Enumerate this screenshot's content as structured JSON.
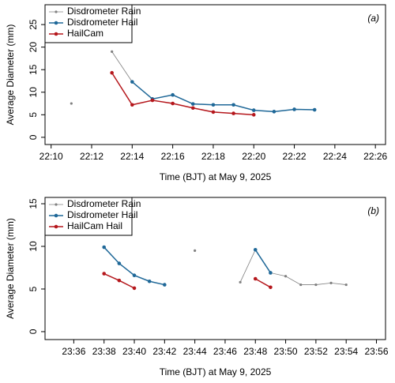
{
  "chart_data": [
    {
      "type": "line",
      "panel": "(a)",
      "xlabel": "Time (BJT) at May 9, 2025",
      "ylabel": "Average Diameter (mm)",
      "xlim": [
        1329.7,
        1346.5
      ],
      "ylim": [
        -1.6,
        29.4
      ],
      "xticks": [
        {
          "value": 1330,
          "label": "22:10"
        },
        {
          "value": 1332,
          "label": "22:12"
        },
        {
          "value": 1334,
          "label": "22:14"
        },
        {
          "value": 1336,
          "label": "22:16"
        },
        {
          "value": 1338,
          "label": "22:18"
        },
        {
          "value": 1340,
          "label": "22:20"
        },
        {
          "value": 1342,
          "label": "22:22"
        },
        {
          "value": 1344,
          "label": "22:24"
        },
        {
          "value": 1346,
          "label": "22:26"
        }
      ],
      "yticks": [
        0,
        5,
        10,
        15,
        20,
        25
      ],
      "legend": "upper left",
      "series": [
        {
          "name": "Disdrometer Rain",
          "color": "#808080",
          "x": [
            1331,
            1332,
            1333,
            1334
          ],
          "values": [
            7.5,
            null,
            19.0,
            12.3
          ]
        },
        {
          "name": "Disdrometer Hail",
          "color": "#1f6898",
          "x": [
            1334,
            1335,
            1336,
            1337,
            1338,
            1339,
            1340,
            1341,
            1342,
            1343
          ],
          "values": [
            12.3,
            8.5,
            9.4,
            7.4,
            7.2,
            7.2,
            6.0,
            5.7,
            6.2,
            6.1
          ]
        },
        {
          "name": "HailCam",
          "color": "#b5171c",
          "x": [
            1333,
            1334,
            1335,
            1336,
            1337,
            1338,
            1339,
            1340
          ],
          "values": [
            14.3,
            7.2,
            8.2,
            7.5,
            6.5,
            5.6,
            5.3,
            5.0
          ]
        }
      ]
    },
    {
      "type": "line",
      "panel": "(b)",
      "xlabel": "Time (BJT) at May 9, 2025",
      "ylabel": "Average Diameter (mm)",
      "xlim": [
        1414.1,
        1436.6
      ],
      "ylim": [
        -0.93,
        15.74
      ],
      "xticks": [
        {
          "value": 1416,
          "label": "23:36"
        },
        {
          "value": 1418,
          "label": "23:38"
        },
        {
          "value": 1420,
          "label": "23:40"
        },
        {
          "value": 1422,
          "label": "23:42"
        },
        {
          "value": 1424,
          "label": "23:44"
        },
        {
          "value": 1426,
          "label": "23:46"
        },
        {
          "value": 1428,
          "label": "23:48"
        },
        {
          "value": 1430,
          "label": "23:50"
        },
        {
          "value": 1432,
          "label": "23:52"
        },
        {
          "value": 1434,
          "label": "23:54"
        },
        {
          "value": 1436,
          "label": "23:56"
        }
      ],
      "yticks": [
        0,
        5,
        10,
        15
      ],
      "legend": "upper left",
      "series": [
        {
          "name": "Disdrometer Rain",
          "color": "#808080",
          "x": [
            1424,
            1425,
            1427,
            1428,
            1429,
            1430,
            1431,
            1432,
            1433,
            1434
          ],
          "values": [
            9.5,
            null,
            5.8,
            9.6,
            6.9,
            6.5,
            5.5,
            5.5,
            5.7,
            5.5
          ]
        },
        {
          "name": "Disdrometer Hail",
          "color": "#1f6898",
          "x": [
            1418,
            1419,
            1420,
            1421,
            1422,
            1423,
            1428,
            1429
          ],
          "values": [
            9.9,
            8.0,
            6.6,
            5.9,
            5.5,
            null,
            9.6,
            6.9
          ]
        },
        {
          "name": "HailCam Hail",
          "color": "#b5171c",
          "x": [
            1418,
            1419,
            1420,
            1421,
            1428,
            1429
          ],
          "values": [
            6.8,
            6.0,
            5.1,
            null,
            6.2,
            5.2
          ]
        }
      ]
    }
  ]
}
